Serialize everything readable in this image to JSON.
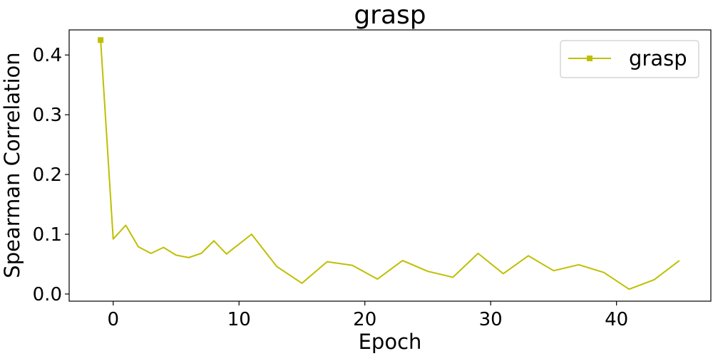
{
  "chart_data": {
    "type": "line",
    "title": "grasp",
    "xlabel": "Epoch",
    "ylabel": "Spearman Correlation",
    "xlim": [
      -3.5,
      47.5
    ],
    "ylim": [
      -0.012,
      0.442
    ],
    "xticks": [
      0,
      10,
      20,
      30,
      40
    ],
    "xtick_labels": [
      "0",
      "10",
      "20",
      "30",
      "40"
    ],
    "yticks": [
      0.0,
      0.1,
      0.2,
      0.3,
      0.4
    ],
    "ytick_labels": [
      "0.0",
      "0.1",
      "0.2",
      "0.3",
      "0.4"
    ],
    "grid": false,
    "legend_position": "top-right",
    "series": [
      {
        "name": "grasp",
        "color": "#bfbf00",
        "marker": "square",
        "points": [
          [
            -1,
            0.425
          ],
          [
            0,
            0.092
          ],
          [
            1,
            0.115
          ],
          [
            2,
            0.079
          ],
          [
            3,
            0.068
          ],
          [
            4,
            0.078
          ],
          [
            5,
            0.065
          ],
          [
            6,
            0.061
          ],
          [
            7,
            0.068
          ],
          [
            8,
            0.089
          ],
          [
            9,
            0.067
          ],
          [
            11,
            0.1
          ],
          [
            13,
            0.046
          ],
          [
            15,
            0.018
          ],
          [
            17,
            0.054
          ],
          [
            19,
            0.048
          ],
          [
            21,
            0.025
          ],
          [
            23,
            0.056
          ],
          [
            25,
            0.038
          ],
          [
            27,
            0.028
          ],
          [
            29,
            0.068
          ],
          [
            31,
            0.034
          ],
          [
            33,
            0.064
          ],
          [
            35,
            0.039
          ],
          [
            37,
            0.049
          ],
          [
            39,
            0.036
          ],
          [
            41,
            0.008
          ],
          [
            43,
            0.024
          ],
          [
            45,
            0.056
          ]
        ]
      }
    ]
  }
}
